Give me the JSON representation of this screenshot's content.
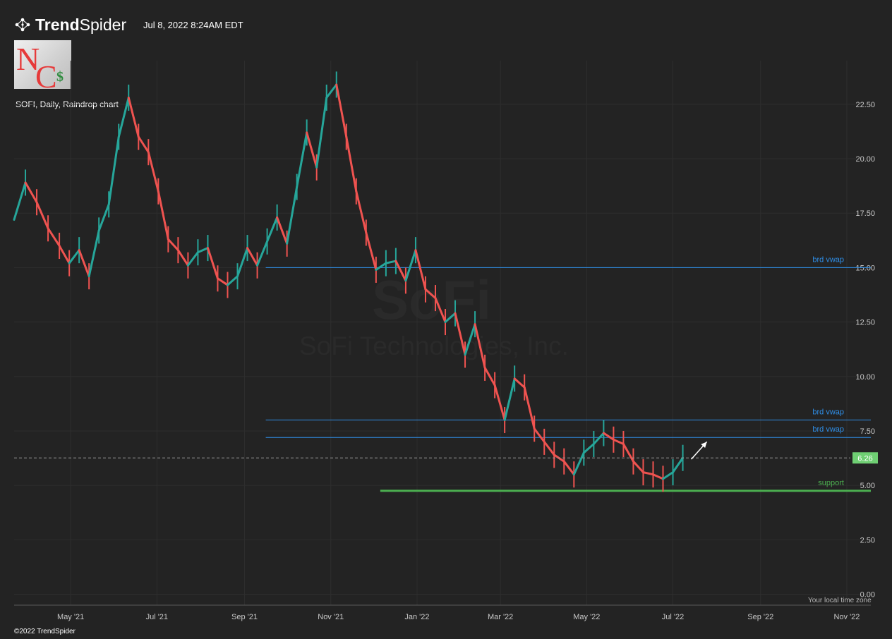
{
  "header": {
    "brand_bold": "Trend",
    "brand_regular": "Spider",
    "timestamp": "Jul 8, 2022 8:24AM EDT",
    "logo_icon": "trendspider-network-icon"
  },
  "badge": {
    "letters_top": "N",
    "letters_bottom": "C",
    "symbol": "$"
  },
  "chart_title": "SOFI, Daily, Raindrop chart",
  "watermark": {
    "ticker": "SoFi",
    "company": "SoFi Technologies, Inc."
  },
  "footer": {
    "copyright": "©2022 TrendSpider",
    "timezone_note": "Your local time zone"
  },
  "colors": {
    "background": "#232323",
    "up": "#26a69a",
    "down": "#ef5350",
    "highlight": "#6b63f5",
    "vwap_line": "#2f8fe8",
    "support_line": "#4caf50",
    "last_price_bg": "#6fcf73"
  },
  "chart_data": {
    "type": "line",
    "title": "SOFI, Daily, Raindrop chart",
    "xlabel": "",
    "ylabel": "",
    "ylim": [
      -0.5,
      24.5
    ],
    "y_ticks": [
      0,
      2.5,
      5,
      7.5,
      10,
      12.5,
      15,
      17.5,
      20,
      22.5
    ],
    "y_tick_labels": [
      "0.00",
      "2.50",
      "5.00",
      "7.50",
      "10.00",
      "12.50",
      "15.00",
      "17.50",
      "20.00",
      "22.50"
    ],
    "xlim": [
      "2021-03-22",
      "2022-11-18"
    ],
    "x_ticks": [
      "2021-05-01",
      "2021-07-01",
      "2021-09-01",
      "2021-11-01",
      "2022-01-01",
      "2022-03-01",
      "2022-05-01",
      "2022-07-01",
      "2022-09-01",
      "2022-11-01"
    ],
    "x_tick_labels": [
      "May '21",
      "Jul '21",
      "Sep '21",
      "Nov '21",
      "Jan '22",
      "Mar '22",
      "May '22",
      "Jul '22",
      "Sep '22",
      "Nov '22"
    ],
    "grid": true,
    "series": [
      {
        "x": [
          "2021-03-22",
          "2021-03-30",
          "2021-04-07",
          "2021-04-15",
          "2021-04-23",
          "2021-04-30",
          "2021-05-07",
          "2021-05-14",
          "2021-05-21",
          "2021-05-28",
          "2021-06-04",
          "2021-06-11",
          "2021-06-18",
          "2021-06-25",
          "2021-07-02",
          "2021-07-09",
          "2021-07-16",
          "2021-07-23",
          "2021-07-30",
          "2021-08-06",
          "2021-08-13",
          "2021-08-20",
          "2021-08-27",
          "2021-09-03",
          "2021-09-10",
          "2021-09-17",
          "2021-09-24",
          "2021-10-01",
          "2021-10-08",
          "2021-10-15",
          "2021-10-22",
          "2021-10-29",
          "2021-11-05",
          "2021-11-12",
          "2021-11-19",
          "2021-11-26",
          "2021-12-03",
          "2021-12-10",
          "2021-12-17",
          "2021-12-24",
          "2021-12-31",
          "2022-01-07",
          "2022-01-14",
          "2022-01-21",
          "2022-01-28",
          "2022-02-04",
          "2022-02-11",
          "2022-02-18",
          "2022-02-25",
          "2022-03-04",
          "2022-03-11",
          "2022-03-18",
          "2022-03-25",
          "2022-04-01",
          "2022-04-08",
          "2022-04-15",
          "2022-04-22",
          "2022-04-29",
          "2022-05-06",
          "2022-05-13",
          "2022-05-20",
          "2022-05-27",
          "2022-06-03",
          "2022-06-10",
          "2022-06-17",
          "2022-06-24",
          "2022-07-01",
          "2022-07-08"
        ],
        "values": [
          17.2,
          18.9,
          18.0,
          16.8,
          16.0,
          15.2,
          15.8,
          14.6,
          16.7,
          17.9,
          21.0,
          22.8,
          21.0,
          20.3,
          18.5,
          16.3,
          15.8,
          15.1,
          15.7,
          15.9,
          14.5,
          14.2,
          14.6,
          15.9,
          15.1,
          16.2,
          17.3,
          16.1,
          18.7,
          21.2,
          19.6,
          22.8,
          23.4,
          21.0,
          18.5,
          16.6,
          14.9,
          15.2,
          15.3,
          14.4,
          15.8,
          14.0,
          13.6,
          12.5,
          12.9,
          11.0,
          12.4,
          10.4,
          9.6,
          8.0,
          9.9,
          9.5,
          7.6,
          7.0,
          6.4,
          6.1,
          5.5,
          6.5,
          6.9,
          7.4,
          7.1,
          6.9,
          6.1,
          5.6,
          5.5,
          5.3,
          5.6,
          6.26
        ],
        "color_by": "direction"
      }
    ],
    "last_price": 6.26,
    "annotations": [
      {
        "label": "brd vwap",
        "y": 15.0,
        "x_start": "2021-09-16",
        "color": "vwap"
      },
      {
        "label": "brd vwap",
        "y": 8.0,
        "x_start": "2021-09-16",
        "color": "vwap"
      },
      {
        "label": "brd vwap",
        "y": 7.2,
        "x_start": "2021-09-16",
        "color": "vwap"
      },
      {
        "label": "support",
        "y": 4.75,
        "x_start": "2021-12-06",
        "color": "support"
      }
    ],
    "arrow": {
      "from": {
        "x": "2022-07-14",
        "y": 6.2
      },
      "to": {
        "x": "2022-07-25",
        "y": 7.0
      }
    }
  }
}
